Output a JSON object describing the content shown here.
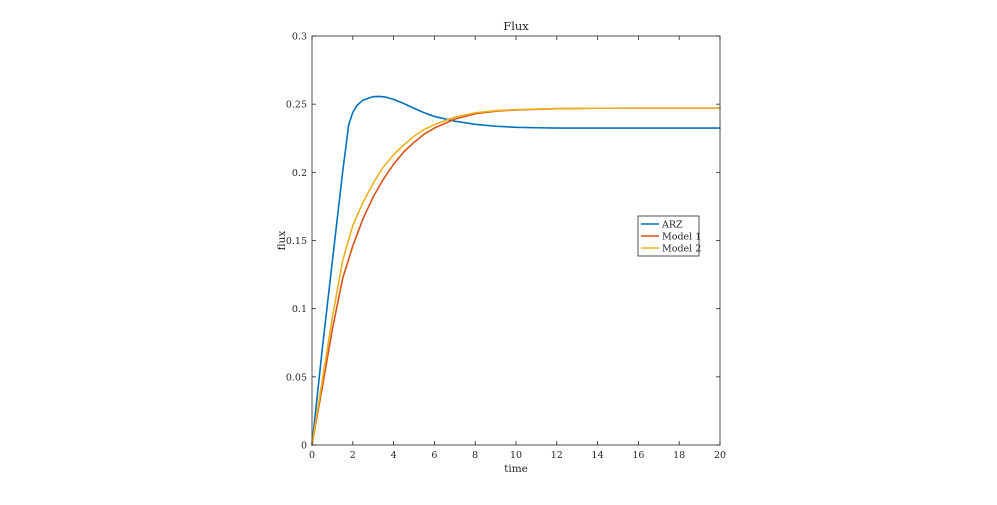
{
  "chart_data": {
    "type": "line",
    "title": "Flux",
    "xlabel": "time",
    "ylabel": "flux",
    "xlim": [
      0,
      20
    ],
    "ylim": [
      0,
      0.3
    ],
    "xticks": [
      0,
      2,
      4,
      6,
      8,
      10,
      12,
      14,
      16,
      18,
      20
    ],
    "yticks": [
      0,
      0.05,
      0.1,
      0.15,
      0.2,
      0.25,
      0.3
    ],
    "xtick_labels": [
      "0",
      "2",
      "4",
      "6",
      "8",
      "10",
      "12",
      "14",
      "16",
      "18",
      "20"
    ],
    "ytick_labels": [
      "0",
      "0.05",
      "0.1",
      "0.15",
      "0.2",
      "0.25",
      "0.3"
    ],
    "grid": false,
    "legend_position": "center-right",
    "series": [
      {
        "name": "ARZ",
        "color": "#0072BD",
        "x": [
          0,
          0.5,
          1,
          1.5,
          1.8,
          2,
          2.2,
          2.5,
          3,
          3.3,
          3.6,
          4,
          4.5,
          5,
          5.5,
          6,
          7,
          8,
          9,
          10,
          11,
          12,
          14,
          16,
          18,
          20
        ],
        "y": [
          0,
          0.07,
          0.135,
          0.2,
          0.235,
          0.244,
          0.249,
          0.253,
          0.2555,
          0.2557,
          0.2552,
          0.2535,
          0.2505,
          0.247,
          0.2437,
          0.241,
          0.2375,
          0.2352,
          0.2338,
          0.233,
          0.2327,
          0.2325,
          0.2325,
          0.2325,
          0.2325,
          0.2325
        ]
      },
      {
        "name": "Model 1",
        "color": "#D95319",
        "x": [
          0,
          0.5,
          1,
          1.5,
          2,
          2.5,
          3,
          3.5,
          4,
          4.5,
          5,
          5.5,
          6,
          7,
          8,
          9,
          10,
          12,
          14,
          16,
          18,
          20
        ],
        "y": [
          0,
          0.042,
          0.085,
          0.122,
          0.146,
          0.166,
          0.182,
          0.195,
          0.206,
          0.215,
          0.222,
          0.228,
          0.2325,
          0.239,
          0.243,
          0.2448,
          0.2458,
          0.2467,
          0.247,
          0.2471,
          0.2471,
          0.2471
        ]
      },
      {
        "name": "Model 2",
        "color": "#EDB120",
        "x": [
          0,
          0.5,
          1,
          1.5,
          2,
          2.5,
          3,
          3.5,
          4,
          4.5,
          5,
          5.5,
          6,
          7,
          8,
          9,
          10,
          12,
          14,
          16,
          18,
          20
        ],
        "y": [
          0,
          0.047,
          0.094,
          0.135,
          0.161,
          0.178,
          0.192,
          0.204,
          0.213,
          0.22,
          0.2265,
          0.2315,
          0.235,
          0.2405,
          0.2437,
          0.2452,
          0.246,
          0.2468,
          0.247,
          0.2471,
          0.2471,
          0.2471
        ]
      }
    ]
  }
}
